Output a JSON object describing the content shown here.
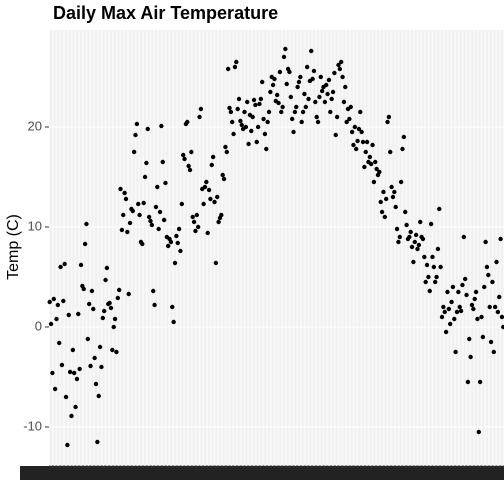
{
  "chart_data": {
    "type": "scatter",
    "title": "Daily Max Air Temperature",
    "y_label": "Temp (C)",
    "color": "#000000",
    "grid": true,
    "ylim": [
      -13.8,
      29.7
    ],
    "yticks": [
      -10,
      0,
      10,
      20
    ],
    "categories": [
      null,
      null,
      null,
      null,
      null,
      null,
      null,
      null,
      null,
      null,
      null,
      null,
      null,
      null,
      null,
      null,
      null,
      null,
      null,
      null,
      null,
      null,
      null,
      null,
      null,
      null,
      null,
      null,
      null,
      null,
      null,
      null,
      null,
      null,
      null,
      null,
      null,
      null,
      null,
      null,
      null,
      null,
      null,
      null,
      null,
      null,
      null,
      null,
      null,
      null,
      null,
      null,
      null,
      null,
      null,
      null,
      null,
      null,
      null,
      null,
      null,
      null,
      null,
      null,
      null,
      null,
      null,
      null,
      null,
      null,
      null,
      null,
      null,
      null,
      null,
      null,
      null,
      null,
      null,
      null,
      null,
      null,
      null,
      null,
      null,
      null,
      null,
      null,
      null,
      null,
      null,
      null,
      null,
      null,
      null,
      null,
      null,
      null,
      null,
      null,
      null,
      null,
      null,
      null,
      null,
      null,
      null,
      null,
      null,
      null,
      null,
      null,
      null,
      null,
      null,
      null,
      null,
      null,
      null,
      null,
      null,
      null,
      null,
      null,
      null,
      null,
      null,
      null,
      null,
      null,
      null,
      null,
      null,
      null,
      null,
      null,
      null,
      null,
      null,
      null,
      null,
      null,
      null,
      null,
      null,
      null,
      null,
      null,
      null,
      null,
      null,
      null,
      null,
      null,
      null,
      null,
      null,
      null,
      null,
      null,
      null,
      null,
      null,
      null,
      null,
      null,
      null,
      null,
      null,
      null,
      null,
      null,
      null,
      null,
      null,
      null,
      null,
      null,
      null,
      null,
      null,
      null,
      null,
      null,
      null,
      null,
      null,
      null,
      null,
      null,
      null,
      null,
      null,
      null,
      null,
      null,
      null,
      null,
      null,
      null,
      null,
      null,
      null,
      null,
      null,
      null,
      null,
      null,
      null,
      null,
      null,
      null,
      null,
      null,
      null,
      null,
      null,
      null,
      null,
      null,
      null,
      null,
      null,
      null,
      null,
      null,
      null,
      null,
      null,
      null,
      null,
      null,
      null,
      null,
      null,
      null,
      null,
      null,
      null,
      null,
      null,
      null,
      null,
      null,
      null,
      null,
      null,
      null,
      null,
      null,
      null,
      null,
      null,
      null,
      null,
      null,
      null,
      null,
      null,
      null,
      null,
      null,
      null,
      null,
      null,
      null,
      null,
      null,
      null,
      null,
      null,
      null,
      null,
      null,
      null,
      null,
      null,
      null,
      null,
      null,
      null,
      null,
      null,
      null,
      null,
      null,
      null,
      null,
      null,
      null,
      null,
      null,
      null,
      null,
      null,
      null,
      null,
      null,
      null,
      null,
      null,
      null,
      null,
      null,
      null,
      null,
      null,
      null,
      null,
      null,
      null,
      null,
      null,
      null,
      null,
      null,
      null,
      null,
      null,
      null,
      null,
      null,
      null,
      null,
      null,
      null,
      null,
      null,
      null,
      null,
      null,
      null,
      null,
      null
    ],
    "values": [
      2.5,
      0.3,
      -4.6,
      2.8,
      -6.2,
      0.8,
      2.2,
      -1.6,
      6.0,
      -3.8,
      2.6,
      6.3,
      -7.0,
      -11.8,
      1.2,
      -4.5,
      -8.9,
      -2.3,
      -4.6,
      -8.0,
      -5.2,
      1.3,
      -4.2,
      6.2,
      4.1,
      3.8,
      8.3,
      10.3,
      -1.2,
      2.3,
      -3.9,
      3.6,
      1.8,
      -3.1,
      -5.7,
      -11.5,
      -6.9,
      -2.0,
      -4.0,
      0.9,
      1.6,
      4.7,
      5.9,
      2.3,
      2.4,
      1.9,
      -2.3,
      0.0,
      0.8,
      -2.5,
      2.9,
      3.7,
      13.8,
      9.7,
      11.2,
      13.4,
      12.8,
      9.5,
      3.3,
      10.4,
      11.8,
      11.6,
      17.5,
      19.2,
      20.3,
      12.3,
      11.2,
      8.5,
      8.3,
      12.4,
      15.0,
      16.4,
      19.8,
      11.0,
      10.6,
      10.2,
      3.6,
      2.2,
      12.0,
      14.0,
      9.8,
      11.5,
      20.1,
      16.5,
      10.7,
      14.4,
      9.0,
      8.1,
      8.8,
      8.5,
      2.0,
      0.5,
      6.4,
      9.1,
      8.4,
      9.8,
      7.6,
      12.3,
      17.2,
      16.8,
      20.3,
      20.5,
      16.1,
      15.7,
      17.5,
      11.0,
      10.5,
      9.6,
      11.2,
      10.0,
      21.0,
      21.8,
      13.8,
      12.3,
      14.0,
      14.5,
      9.4,
      13.7,
      12.8,
      16.2,
      17.0,
      12.5,
      6.4,
      13.0,
      10.5,
      10.9,
      11.2,
      15.2,
      14.8,
      18.0,
      17.5,
      25.8,
      21.9,
      21.5,
      20.5,
      19.3,
      26.0,
      26.5,
      21.8,
      22.8,
      20.6,
      20.2,
      19.8,
      21.5,
      20.0,
      22.5,
      18.3,
      21.2,
      19.6,
      21.0,
      22.7,
      22.2,
      18.5,
      20.0,
      22.3,
      22.8,
      24.5,
      20.8,
      19.3,
      17.8,
      20.5,
      21.5,
      23.5,
      25.0,
      24.2,
      24.8,
      22.6,
      23.2,
      22.4,
      25.5,
      21.5,
      22.0,
      27.0,
      27.8,
      24.3,
      25.8,
      25.5,
      23.0,
      20.8,
      19.5,
      21.5,
      22.0,
      24.0,
      24.5,
      25.0,
      20.5,
      21.5,
      23.3,
      22.0,
      26.0,
      22.8,
      24.6,
      27.6,
      24.8,
      25.6,
      22.5,
      21.0,
      20.5,
      23.0,
      25.0,
      23.6,
      24.0,
      22.5,
      24.2,
      23.3,
      24.7,
      21.5,
      22.8,
      23.5,
      25.4,
      19.2,
      21.0,
      26.2,
      25.8,
      26.5,
      25.0,
      22.5,
      24.0,
      20.5,
      21.8,
      20.8,
      22.0,
      19.5,
      18.2,
      20.0,
      17.8,
      18.6,
      19.8,
      21.5,
      19.5,
      18.5,
      16.0,
      17.5,
      18.5,
      16.5,
      17.0,
      16.3,
      18.2,
      14.5,
      16.5,
      15.8,
      15.2,
      15.5,
      12.5,
      11.5,
      13.5,
      11.0,
      12.8,
      20.5,
      21.0,
      17.5,
      14.0,
      13.0,
      13.5,
      12.0,
      9.8,
      8.5,
      9.0,
      14.5,
      17.8,
      19.0,
      11.5,
      10.2,
      8.8,
      9.0,
      9.5,
      8.0,
      6.5,
      8.5,
      9.2,
      7.8,
      8.2,
      10.5,
      9.0,
      8.8,
      7.0,
      4.5,
      6.2,
      5.0,
      3.6,
      10.3,
      7.0,
      6.0,
      4.5,
      5.0,
      7.8,
      11.8,
      6.0,
      1.0,
      2.0,
      1.5,
      -0.5,
      3.5,
      1.8,
      0.3,
      2.5,
      4.0,
      0.8,
      -2.5,
      1.5,
      3.5,
      2.0,
      1.6,
      4.2,
      9.0,
      4.8,
      3.2,
      -5.5,
      -1.2,
      -3.0,
      2.2,
      1.8,
      2.8,
      3.5,
      0.8,
      -10.5,
      -5.5,
      1.0,
      -1.0,
      4.0,
      8.5,
      6.0,
      5.2,
      2.0,
      -1.5,
      4.5,
      -2.5,
      2.0,
      6.5,
      1.5,
      3.0,
      8.8,
      1.0,
      0.0
    ]
  }
}
